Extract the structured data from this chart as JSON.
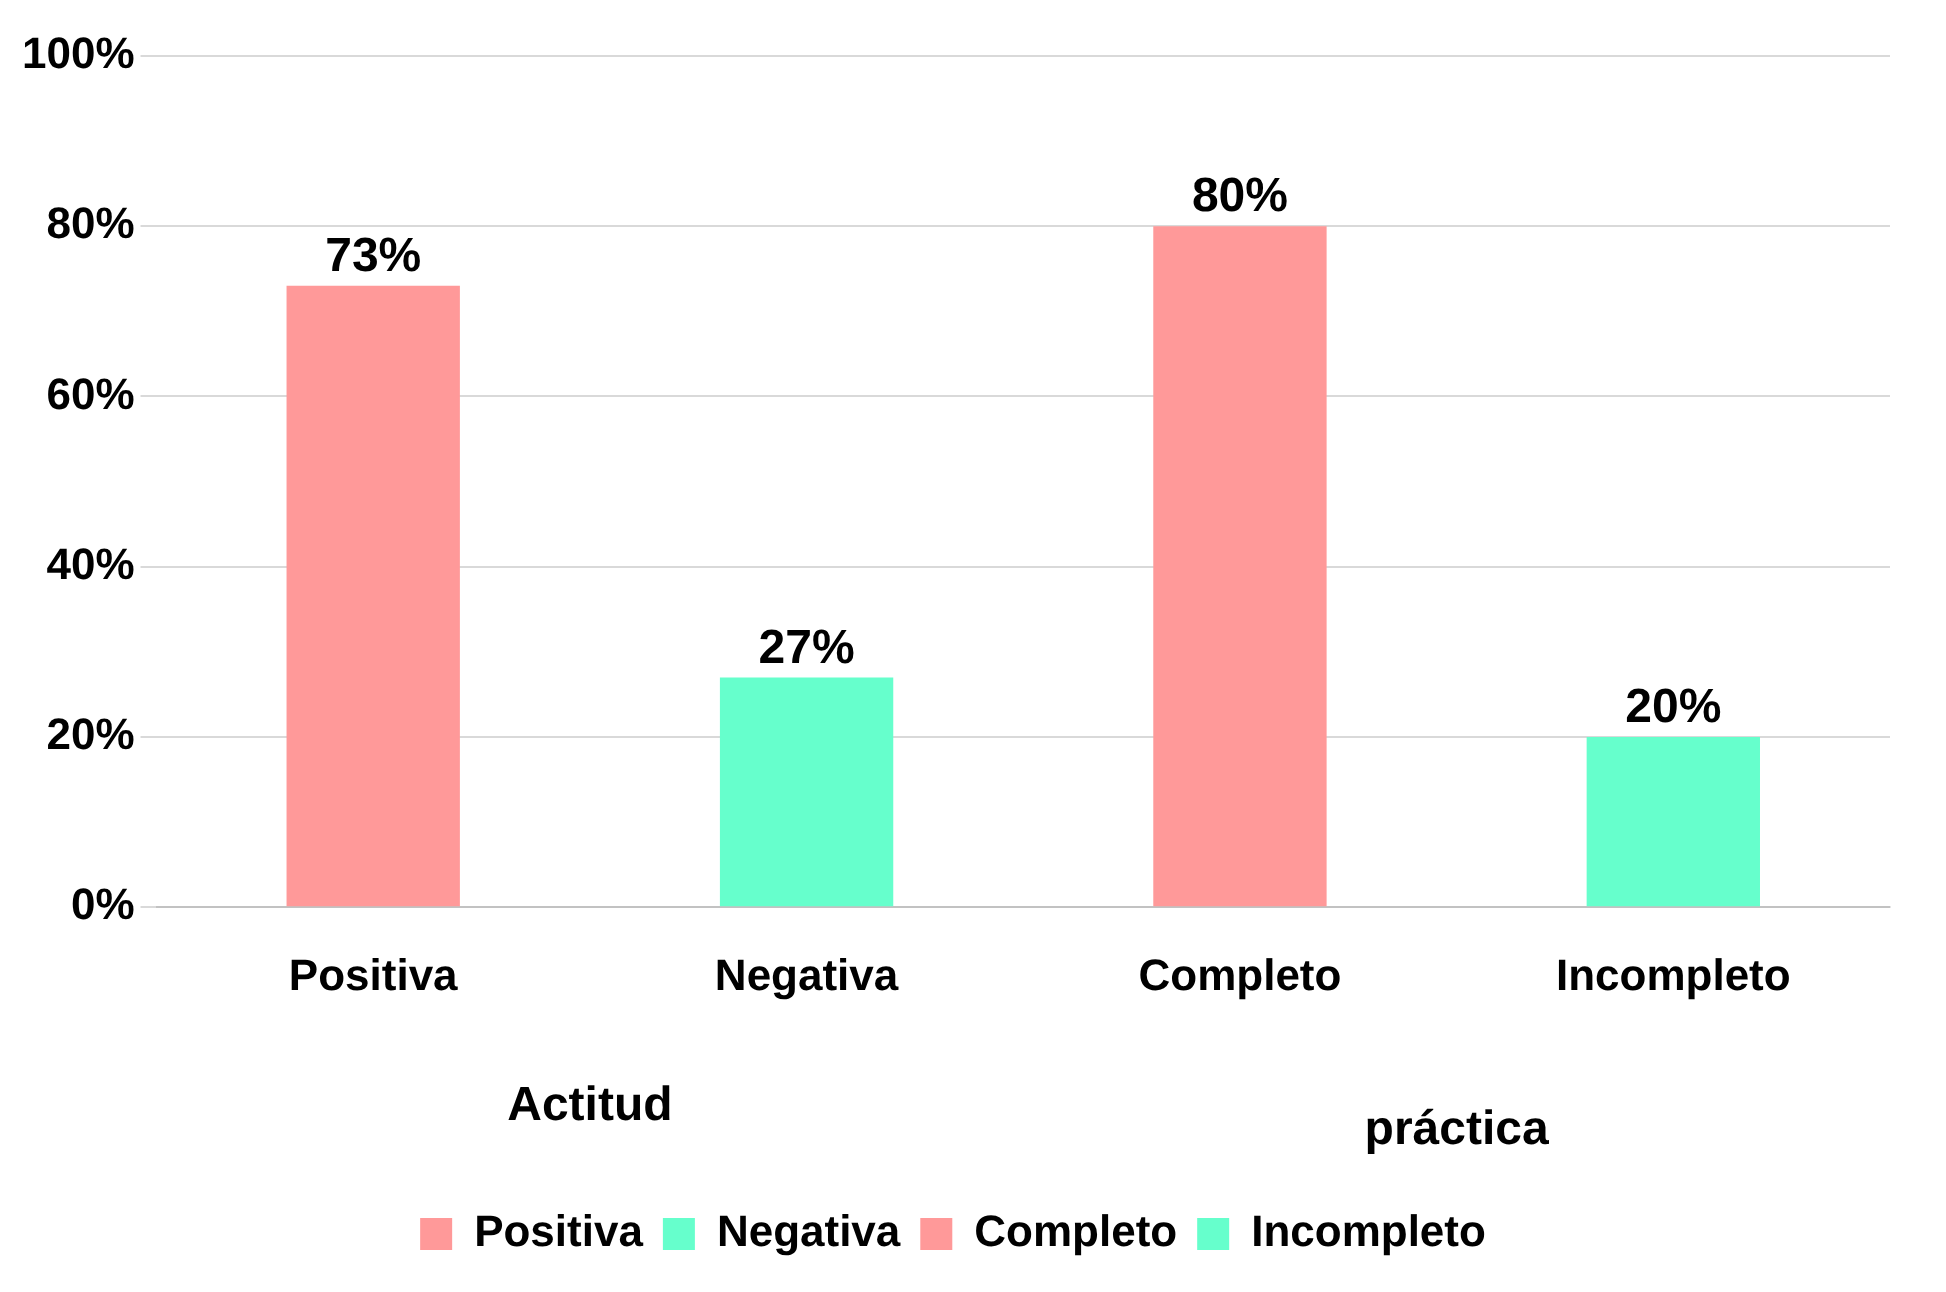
{
  "chart_data": {
    "type": "bar",
    "categories": [
      "Positiva",
      "Negativa",
      "Completo",
      "Incompleto"
    ],
    "series": [
      {
        "name": "Positiva",
        "color": "#ff9999",
        "values": [
          73,
          null,
          null,
          null
        ],
        "value_labels": [
          "73%",
          null,
          null,
          null
        ]
      },
      {
        "name": "Negativa",
        "color": "#66ffcc",
        "values": [
          null,
          27,
          null,
          null
        ],
        "value_labels": [
          null,
          "27%",
          null,
          null
        ]
      },
      {
        "name": "Completo",
        "color": "#ff9999",
        "values": [
          null,
          null,
          80,
          null
        ],
        "value_labels": [
          null,
          null,
          "80%",
          null
        ]
      },
      {
        "name": "Incompleto",
        "color": "#66ffcc",
        "values": [
          null,
          null,
          null,
          20
        ],
        "value_labels": [
          null,
          null,
          null,
          "20%"
        ]
      }
    ],
    "ylim": [
      0,
      100
    ],
    "yticks": [
      {
        "value": 0,
        "label": "0%"
      },
      {
        "value": 20,
        "label": "20%"
      },
      {
        "value": 40,
        "label": "40%"
      },
      {
        "value": 60,
        "label": "60%"
      },
      {
        "value": 80,
        "label": "80%"
      },
      {
        "value": 100,
        "label": "100%"
      }
    ],
    "grid": "y",
    "legend": "bottom",
    "annotations": [
      "Actitud",
      "práctica"
    ]
  }
}
